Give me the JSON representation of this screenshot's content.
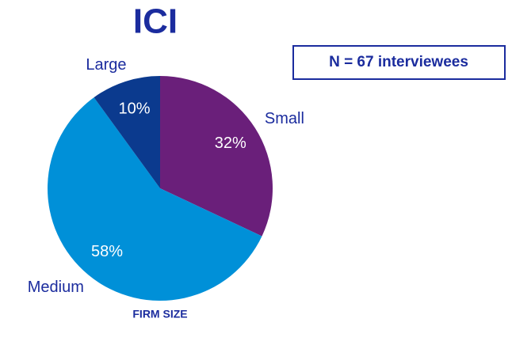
{
  "chart_data": {
    "type": "pie",
    "title": "ICI",
    "annotation": "N = 67 interviewees",
    "xlabel": "FIRM SIZE",
    "categories": [
      "Small",
      "Medium",
      "Large"
    ],
    "values": [
      32,
      58,
      10
    ],
    "value_labels": [
      "32%",
      "58%",
      "10%"
    ],
    "colors": [
      "#6a1f7a",
      "#0090d8",
      "#0b3a8e"
    ]
  }
}
